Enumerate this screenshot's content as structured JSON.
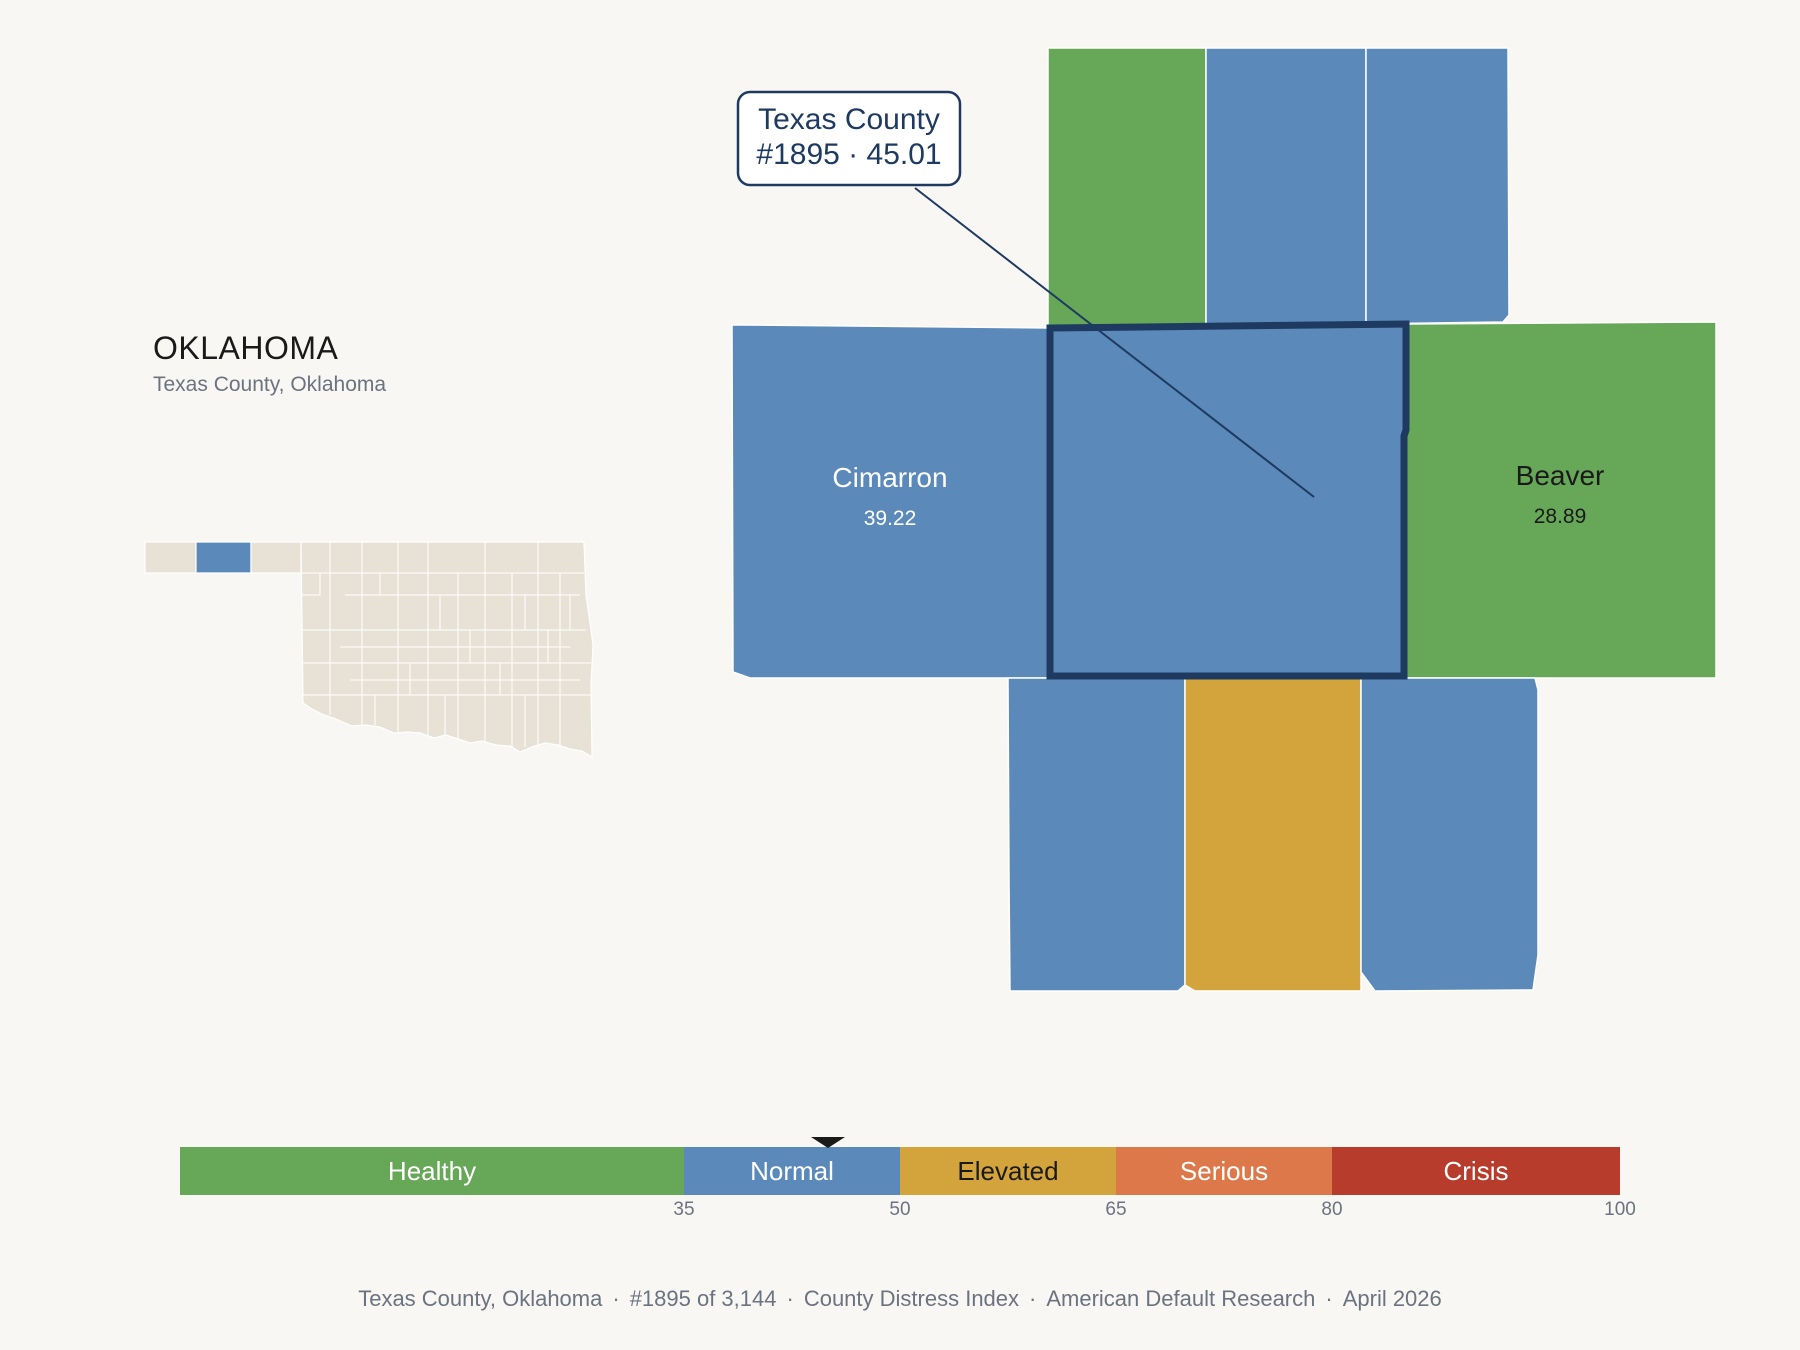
{
  "header": {
    "state": "OKLAHOMA",
    "subtitle": "Texas County, Oklahoma"
  },
  "focus": {
    "name": "Texas County",
    "rank_value": "#1895 · 45.01",
    "rank": 1895,
    "score": 45.01
  },
  "counties": {
    "cimarron": {
      "name": "Cimarron",
      "value": "39.22",
      "category": "Normal"
    },
    "beaver": {
      "name": "Beaver",
      "value": "28.89",
      "category": "Healthy"
    },
    "texas": {
      "name": "Texas County",
      "value": "45.01",
      "category": "Normal"
    }
  },
  "legend": {
    "segments": [
      {
        "label": "Healthy",
        "from": 0,
        "to": 35,
        "color": "#67a758",
        "text_color": "#ffffff"
      },
      {
        "label": "Normal",
        "from": 35,
        "to": 50,
        "color": "#5b8aba",
        "text_color": "#ffffff"
      },
      {
        "label": "Elevated",
        "from": 50,
        "to": 65,
        "color": "#d4a43c",
        "text_color": "#1a1a1a"
      },
      {
        "label": "Serious",
        "from": 65,
        "to": 80,
        "color": "#dc7849",
        "text_color": "#ffffff"
      },
      {
        "label": "Crisis",
        "from": 80,
        "to": 100,
        "color": "#b83c2c",
        "text_color": "#ffffff"
      }
    ],
    "ticks": [
      "35",
      "50",
      "65",
      "80",
      "100"
    ],
    "marker_value": 45.01
  },
  "footer": {
    "items": [
      "Texas County, Oklahoma",
      "#1895 of 3,144",
      "County Distress Index",
      "American Default Research",
      "April 2026"
    ],
    "separator": "·"
  },
  "colors": {
    "healthy": "#67a758",
    "normal": "#5b8aba",
    "elevated": "#d4a43c",
    "land": "#e8e2d6",
    "highlight": "#1e3a60",
    "background": "#f9f7f3"
  }
}
